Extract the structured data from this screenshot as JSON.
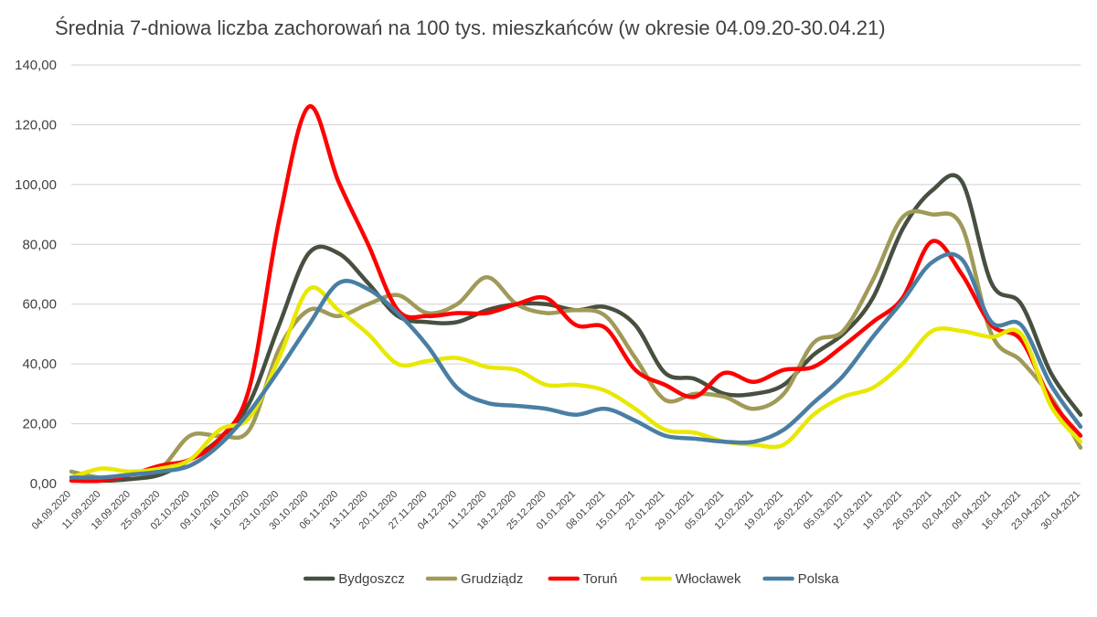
{
  "chart_data": {
    "type": "line",
    "title": "Średnia 7-dniowa liczba zachorowań na 100 tys. mieszkańców (w okresie 04.09.20-30.04.21)",
    "xlabel": "",
    "ylabel": "",
    "ylim": [
      0,
      140
    ],
    "y_ticks": [
      "0,00",
      "20,00",
      "40,00",
      "60,00",
      "80,00",
      "100,00",
      "120,00",
      "140,00"
    ],
    "grid": true,
    "legend_position": "bottom",
    "categories": [
      "04.09.2020",
      "11.09.2020",
      "18.09.2020",
      "25.09.2020",
      "02.10.2020",
      "09.10.2020",
      "16.10.2020",
      "23.10.2020",
      "30.10.2020",
      "06.11.2020",
      "13.11.2020",
      "20.11.2020",
      "27.11.2020",
      "04.12.2020",
      "11.12.2020",
      "18.12.2020",
      "25.12.2020",
      "01.01.2021",
      "08.01.2021",
      "15.01.2021",
      "22.01.2021",
      "29.01.2021",
      "05.02.2021",
      "12.02.2021",
      "19.02.2021",
      "26.02.2021",
      "05.03.2021",
      "12.03.2021",
      "19.03.2021",
      "26.03.2021",
      "02.04.2021",
      "09.04.2021",
      "16.04.2021",
      "23.04.2021",
      "30.04.2021"
    ],
    "series": [
      {
        "name": "Bydgoszcz",
        "color": "#475040",
        "values": [
          2,
          1,
          1.5,
          3,
          8,
          15,
          27,
          53,
          77,
          77,
          67,
          56,
          54,
          54,
          58,
          60,
          60,
          58,
          59,
          53,
          37,
          35,
          30,
          30,
          33,
          43,
          50,
          62,
          85,
          98,
          101,
          67,
          60,
          37,
          23
        ]
      },
      {
        "name": "Grudziądz",
        "color": "#A09A59",
        "values": [
          4,
          2,
          3,
          5,
          16,
          16,
          18,
          45,
          58,
          56,
          60,
          63,
          57,
          60,
          69,
          60,
          57,
          58,
          56,
          42,
          28,
          30,
          29,
          25,
          30,
          47,
          51,
          68,
          89,
          90,
          86,
          50,
          41,
          29,
          12
        ]
      },
      {
        "name": "Toruń",
        "color": "#FF0000",
        "values": [
          1,
          1,
          3,
          6,
          8,
          15,
          32,
          88,
          126,
          101,
          80,
          58,
          56,
          57,
          57,
          60,
          62,
          53,
          52,
          38,
          33,
          29,
          37,
          34,
          38,
          39,
          46,
          54,
          62,
          81,
          70,
          53,
          48,
          28,
          16
        ]
      },
      {
        "name": "Włocławek",
        "color": "#E8E800",
        "values": [
          2,
          5,
          4,
          5,
          8,
          18,
          22,
          42,
          65,
          58,
          50,
          40,
          41,
          42,
          39,
          38,
          33,
          33,
          31,
          25,
          18,
          17,
          14,
          13,
          13,
          23,
          29,
          32,
          40,
          51,
          51,
          49,
          50,
          26,
          14
        ]
      },
      {
        "name": "Polska",
        "color": "#4A7EA3",
        "values": [
          2,
          2,
          3,
          4,
          6,
          13,
          24,
          38,
          53,
          67,
          65,
          57,
          46,
          32,
          27,
          26,
          25,
          23,
          25,
          21,
          16,
          15,
          14,
          14,
          18,
          27,
          36,
          49,
          61,
          74,
          75,
          54,
          53,
          33,
          19
        ]
      }
    ]
  }
}
